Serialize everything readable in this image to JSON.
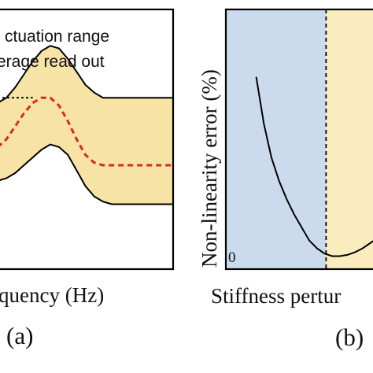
{
  "chart_data": [
    {
      "panel": "(a)",
      "type": "line",
      "xlabel": "quency (Hz)",
      "ylabel": "",
      "legend": [
        {
          "label": "ctuation range",
          "color": "#f7e3a6",
          "style": "band"
        },
        {
          "label": "erage read out",
          "color": "#d62828",
          "style": "dashed"
        }
      ],
      "x": [
        0,
        0.05,
        0.1,
        0.15,
        0.2,
        0.25,
        0.3,
        0.35,
        0.4,
        0.45,
        0.5,
        0.55,
        0.6,
        0.65,
        0.7,
        0.75,
        0.8,
        0.85,
        0.9,
        0.95,
        1.0
      ],
      "series": [
        {
          "role": "upper_bound",
          "values": [
            0.64,
            0.66,
            0.7,
            0.75,
            0.8,
            0.84,
            0.86,
            0.85,
            0.81,
            0.76,
            0.71,
            0.68,
            0.66,
            0.66,
            0.66,
            0.66,
            0.66,
            0.66,
            0.66,
            0.66,
            0.66
          ]
        },
        {
          "role": "lower_bound",
          "values": [
            0.34,
            0.35,
            0.37,
            0.4,
            0.43,
            0.46,
            0.48,
            0.47,
            0.44,
            0.38,
            0.32,
            0.28,
            0.26,
            0.25,
            0.25,
            0.25,
            0.25,
            0.25,
            0.25,
            0.25,
            0.25
          ]
        },
        {
          "role": "average",
          "values": [
            0.47,
            0.5,
            0.55,
            0.6,
            0.64,
            0.66,
            0.66,
            0.63,
            0.57,
            0.5,
            0.44,
            0.41,
            0.4,
            0.4,
            0.4,
            0.4,
            0.4,
            0.4,
            0.4,
            0.4,
            0.4
          ]
        }
      ],
      "reference_line": {
        "x_start": 0,
        "x_end": 0.2,
        "y": 0.66,
        "style": "dotted"
      }
    },
    {
      "panel": "(b)",
      "type": "line",
      "xlabel": "Stiffness pertur",
      "ylabel": "Non-linearity error (%)",
      "y_origin_label": "0",
      "regions": [
        {
          "x_start": 0,
          "x_end": 0.66,
          "color": "#ccdaed"
        },
        {
          "x_start": 0.66,
          "x_end": 1.0,
          "color": "#fbecc0"
        }
      ],
      "divider_x": 0.66,
      "x": [
        0.2,
        0.25,
        0.3,
        0.35,
        0.4,
        0.45,
        0.5,
        0.55,
        0.6,
        0.65,
        0.7,
        0.75,
        0.8,
        0.85,
        0.9,
        0.95,
        1.0
      ],
      "values": [
        0.74,
        0.56,
        0.43,
        0.34,
        0.27,
        0.21,
        0.16,
        0.11,
        0.08,
        0.06,
        0.05,
        0.05,
        0.055,
        0.065,
        0.08,
        0.1,
        0.12
      ]
    }
  ]
}
